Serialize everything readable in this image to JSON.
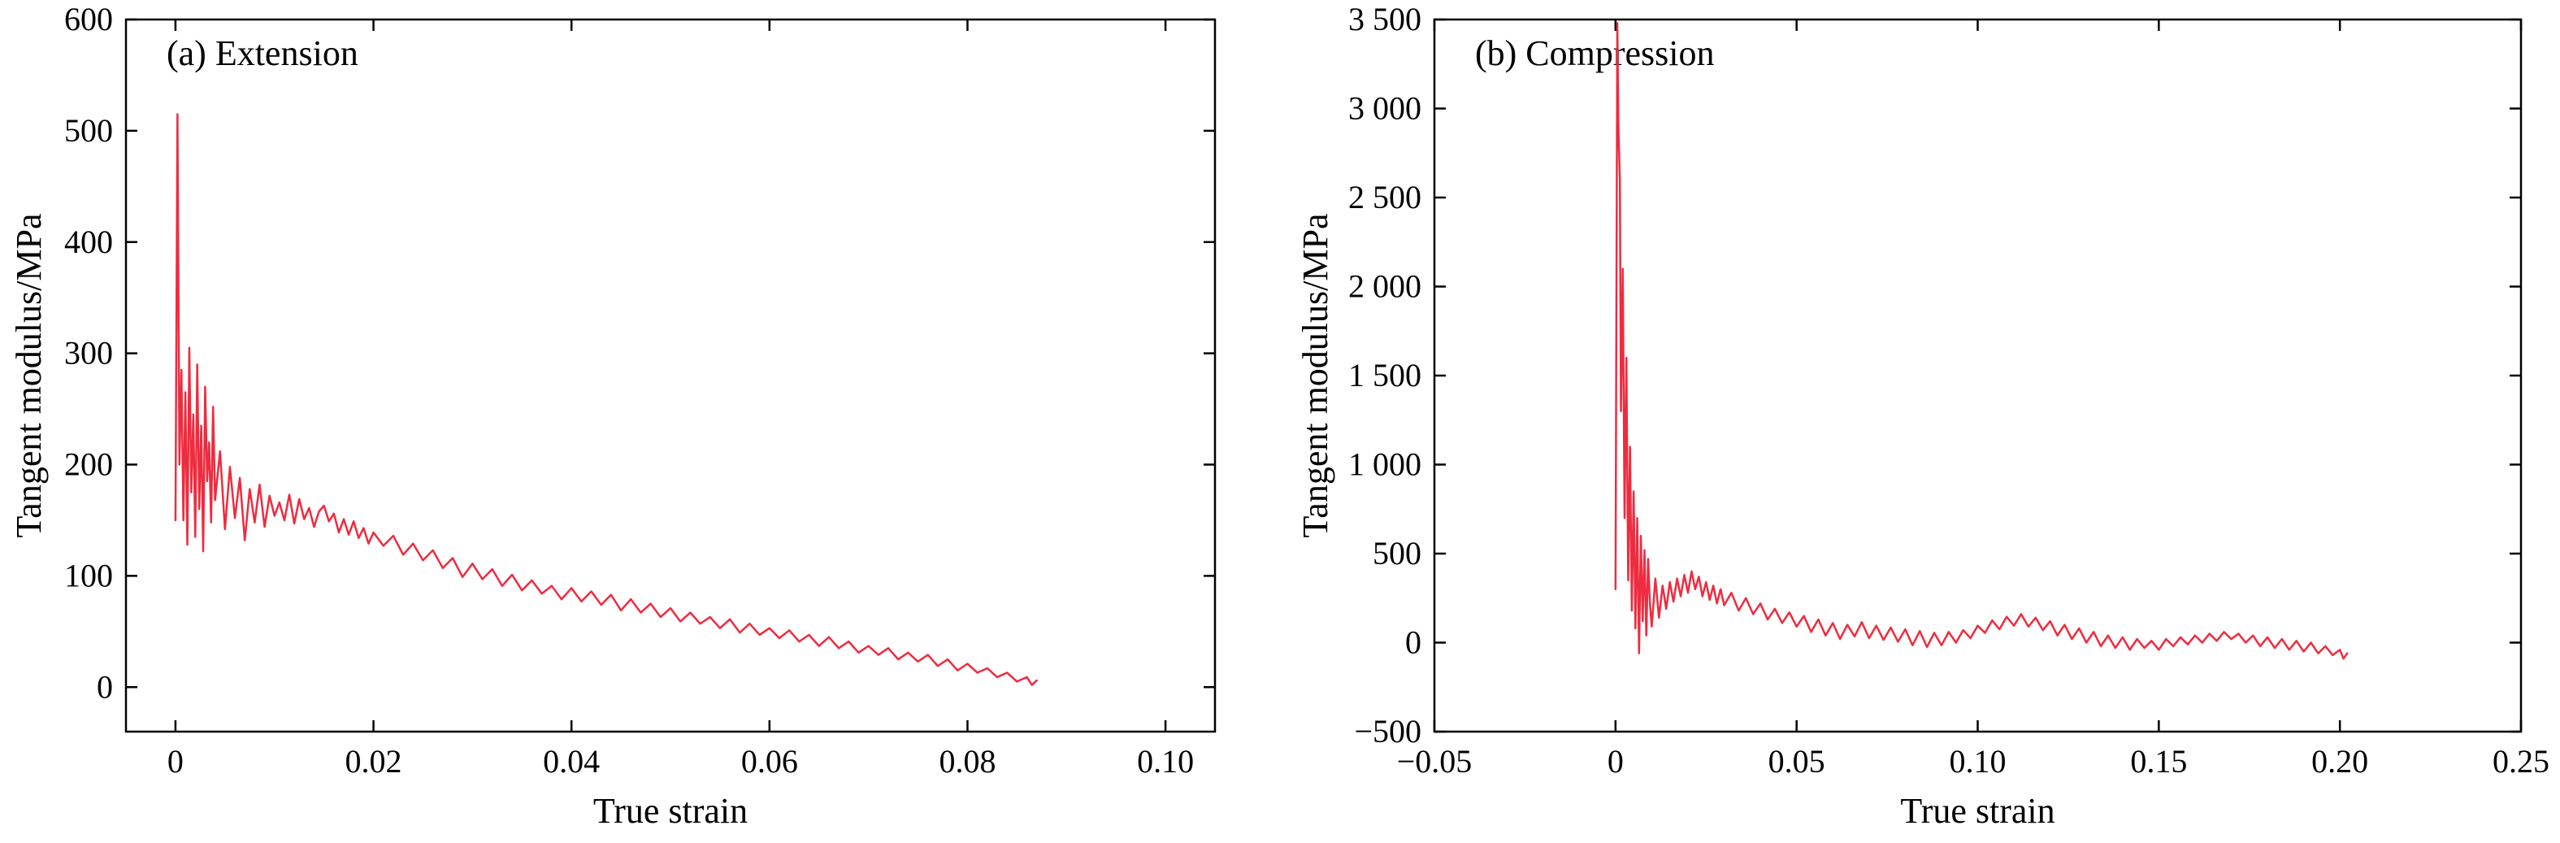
{
  "page": {
    "background": "#ffffff"
  },
  "chart_data": [
    {
      "type": "line",
      "panel_label": "(a) Extension",
      "xlabel": "True strain",
      "ylabel": "Tangent modulus/MPa",
      "xlim": [
        -0.005,
        0.105
      ],
      "ylim": [
        -40,
        600
      ],
      "xticks": [
        0,
        0.02,
        0.04,
        0.06,
        0.08,
        0.1
      ],
      "xtick_labels": [
        "0",
        "0.02",
        "0.04",
        "0.06",
        "0.08",
        "0.10"
      ],
      "yticks": [
        0,
        100,
        200,
        300,
        400,
        500,
        600
      ],
      "ytick_labels": [
        "0",
        "100",
        "200",
        "300",
        "400",
        "500",
        "600"
      ],
      "grid": false,
      "legend": "none",
      "line_color": "#ee2c3f",
      "axis_color": "#000000",
      "series": [
        {
          "name": "tangent-modulus-extension",
          "points": [
            [
              0.0,
              150
            ],
            [
              0.0002,
              515
            ],
            [
              0.0004,
              200
            ],
            [
              0.0006,
              285
            ],
            [
              0.0008,
              150
            ],
            [
              0.001,
              265
            ],
            [
              0.0012,
              128
            ],
            [
              0.0014,
              305
            ],
            [
              0.0016,
              175
            ],
            [
              0.0018,
              245
            ],
            [
              0.002,
              135
            ],
            [
              0.0022,
              290
            ],
            [
              0.0024,
              160
            ],
            [
              0.0026,
              235
            ],
            [
              0.0028,
              122
            ],
            [
              0.003,
              270
            ],
            [
              0.0032,
              185
            ],
            [
              0.0034,
              220
            ],
            [
              0.0036,
              148
            ],
            [
              0.0038,
              252
            ],
            [
              0.004,
              168
            ],
            [
              0.0045,
              212
            ],
            [
              0.005,
              142
            ],
            [
              0.0055,
              198
            ],
            [
              0.006,
              152
            ],
            [
              0.0065,
              188
            ],
            [
              0.007,
              132
            ],
            [
              0.0075,
              178
            ],
            [
              0.008,
              148
            ],
            [
              0.0085,
              182
            ],
            [
              0.009,
              144
            ],
            [
              0.0095,
              172
            ],
            [
              0.01,
              154
            ],
            [
              0.0105,
              166
            ],
            [
              0.011,
              150
            ],
            [
              0.0115,
              173
            ],
            [
              0.012,
              147
            ],
            [
              0.0125,
              169
            ],
            [
              0.013,
              151
            ],
            [
              0.0135,
              161
            ],
            [
              0.014,
              144
            ],
            [
              0.0145,
              158
            ],
            [
              0.015,
              163
            ],
            [
              0.0155,
              149
            ],
            [
              0.016,
              156
            ],
            [
              0.0165,
              139
            ],
            [
              0.017,
              151
            ],
            [
              0.0175,
              137
            ],
            [
              0.018,
              149
            ],
            [
              0.0185,
              134
            ],
            [
              0.019,
              143
            ],
            [
              0.0195,
              129
            ],
            [
              0.02,
              139
            ],
            [
              0.021,
              127
            ],
            [
              0.022,
              136
            ],
            [
              0.023,
              119
            ],
            [
              0.024,
              129
            ],
            [
              0.025,
              114
            ],
            [
              0.026,
              123
            ],
            [
              0.027,
              107
            ],
            [
              0.028,
              116
            ],
            [
              0.029,
              99
            ],
            [
              0.03,
              111
            ],
            [
              0.031,
              97
            ],
            [
              0.032,
              106
            ],
            [
              0.033,
              91
            ],
            [
              0.034,
              101
            ],
            [
              0.035,
              87
            ],
            [
              0.036,
              96
            ],
            [
              0.037,
              84
            ],
            [
              0.038,
              91
            ],
            [
              0.039,
              79
            ],
            [
              0.04,
              89
            ],
            [
              0.041,
              77
            ],
            [
              0.042,
              86
            ],
            [
              0.043,
              74
            ],
            [
              0.044,
              83
            ],
            [
              0.045,
              69
            ],
            [
              0.046,
              79
            ],
            [
              0.047,
              67
            ],
            [
              0.048,
              75
            ],
            [
              0.049,
              63
            ],
            [
              0.05,
              71
            ],
            [
              0.051,
              59
            ],
            [
              0.052,
              67
            ],
            [
              0.053,
              57
            ],
            [
              0.054,
              63
            ],
            [
              0.055,
              53
            ],
            [
              0.056,
              61
            ],
            [
              0.057,
              49
            ],
            [
              0.058,
              57
            ],
            [
              0.059,
              47
            ],
            [
              0.06,
              53
            ],
            [
              0.061,
              44
            ],
            [
              0.062,
              51
            ],
            [
              0.063,
              41
            ],
            [
              0.064,
              47
            ],
            [
              0.065,
              37
            ],
            [
              0.066,
              45
            ],
            [
              0.067,
              35
            ],
            [
              0.068,
              41
            ],
            [
              0.069,
              31
            ],
            [
              0.07,
              37
            ],
            [
              0.071,
              29
            ],
            [
              0.072,
              35
            ],
            [
              0.073,
              25
            ],
            [
              0.074,
              31
            ],
            [
              0.075,
              23
            ],
            [
              0.076,
              29
            ],
            [
              0.077,
              19
            ],
            [
              0.078,
              25
            ],
            [
              0.079,
              15
            ],
            [
              0.08,
              21
            ],
            [
              0.081,
              13
            ],
            [
              0.082,
              17
            ],
            [
              0.083,
              9
            ],
            [
              0.084,
              13
            ],
            [
              0.085,
              5
            ],
            [
              0.086,
              9
            ],
            [
              0.0865,
              2
            ],
            [
              0.087,
              6
            ]
          ]
        }
      ]
    },
    {
      "type": "line",
      "panel_label": "(b) Compression",
      "xlabel": "True strain",
      "ylabel": "Tangent modulus/MPa",
      "xlim": [
        -0.05,
        0.25
      ],
      "ylim": [
        -500,
        3500
      ],
      "xticks": [
        -0.05,
        0,
        0.05,
        0.1,
        0.15,
        0.2,
        0.25
      ],
      "xtick_labels": [
        "−0.05",
        "0",
        "0.05",
        "0.10",
        "0.15",
        "0.20",
        "0.25"
      ],
      "yticks": [
        -500,
        0,
        500,
        1000,
        1500,
        2000,
        2500,
        3000,
        3500
      ],
      "ytick_labels": [
        "−500",
        "0",
        "500",
        "1 000",
        "1 500",
        "2 000",
        "2 500",
        "3 000",
        "3 500"
      ],
      "grid": false,
      "legend": "none",
      "line_color": "#ee2c3f",
      "axis_color": "#000000",
      "series": [
        {
          "name": "tangent-modulus-compression",
          "points": [
            [
              0.0,
              300
            ],
            [
              0.0005,
              3480
            ],
            [
              0.0008,
              2900
            ],
            [
              0.0012,
              2600
            ],
            [
              0.0015,
              1300
            ],
            [
              0.002,
              2100
            ],
            [
              0.0025,
              700
            ],
            [
              0.003,
              1600
            ],
            [
              0.0035,
              350
            ],
            [
              0.004,
              1100
            ],
            [
              0.0045,
              180
            ],
            [
              0.005,
              850
            ],
            [
              0.0055,
              80
            ],
            [
              0.006,
              700
            ],
            [
              0.0065,
              -60
            ],
            [
              0.007,
              600
            ],
            [
              0.0075,
              120
            ],
            [
              0.008,
              520
            ],
            [
              0.0085,
              40
            ],
            [
              0.009,
              470
            ],
            [
              0.0095,
              220
            ],
            [
              0.01,
              90
            ],
            [
              0.011,
              360
            ],
            [
              0.012,
              140
            ],
            [
              0.013,
              320
            ],
            [
              0.014,
              190
            ],
            [
              0.015,
              340
            ],
            [
              0.016,
              230
            ],
            [
              0.017,
              360
            ],
            [
              0.018,
              260
            ],
            [
              0.019,
              380
            ],
            [
              0.02,
              280
            ],
            [
              0.021,
              400
            ],
            [
              0.022,
              300
            ],
            [
              0.023,
              370
            ],
            [
              0.024,
              260
            ],
            [
              0.025,
              340
            ],
            [
              0.026,
              240
            ],
            [
              0.027,
              320
            ],
            [
              0.028,
              220
            ],
            [
              0.029,
              300
            ],
            [
              0.03,
              210
            ],
            [
              0.032,
              280
            ],
            [
              0.034,
              180
            ],
            [
              0.036,
              250
            ],
            [
              0.038,
              160
            ],
            [
              0.04,
              220
            ],
            [
              0.042,
              130
            ],
            [
              0.044,
              190
            ],
            [
              0.046,
              110
            ],
            [
              0.048,
              170
            ],
            [
              0.05,
              90
            ],
            [
              0.052,
              150
            ],
            [
              0.054,
              60
            ],
            [
              0.056,
              130
            ],
            [
              0.058,
              40
            ],
            [
              0.06,
              110
            ],
            [
              0.062,
              20
            ],
            [
              0.064,
              100
            ],
            [
              0.066,
              35
            ],
            [
              0.068,
              115
            ],
            [
              0.07,
              25
            ],
            [
              0.072,
              95
            ],
            [
              0.074,
              15
            ],
            [
              0.076,
              85
            ],
            [
              0.078,
              5
            ],
            [
              0.08,
              75
            ],
            [
              0.082,
              -15
            ],
            [
              0.084,
              65
            ],
            [
              0.086,
              -25
            ],
            [
              0.088,
              55
            ],
            [
              0.09,
              -15
            ],
            [
              0.092,
              60
            ],
            [
              0.094,
              0
            ],
            [
              0.096,
              70
            ],
            [
              0.098,
              25
            ],
            [
              0.1,
              95
            ],
            [
              0.102,
              55
            ],
            [
              0.104,
              125
            ],
            [
              0.106,
              75
            ],
            [
              0.108,
              145
            ],
            [
              0.11,
              95
            ],
            [
              0.112,
              160
            ],
            [
              0.114,
              90
            ],
            [
              0.116,
              140
            ],
            [
              0.118,
              70
            ],
            [
              0.12,
              120
            ],
            [
              0.122,
              40
            ],
            [
              0.124,
              100
            ],
            [
              0.126,
              20
            ],
            [
              0.128,
              80
            ],
            [
              0.13,
              0
            ],
            [
              0.132,
              60
            ],
            [
              0.134,
              -20
            ],
            [
              0.136,
              40
            ],
            [
              0.138,
              -30
            ],
            [
              0.14,
              30
            ],
            [
              0.142,
              -40
            ],
            [
              0.144,
              20
            ],
            [
              0.146,
              -30
            ],
            [
              0.148,
              10
            ],
            [
              0.15,
              -40
            ],
            [
              0.152,
              20
            ],
            [
              0.154,
              -20
            ],
            [
              0.156,
              30
            ],
            [
              0.158,
              -10
            ],
            [
              0.16,
              40
            ],
            [
              0.162,
              0
            ],
            [
              0.164,
              50
            ],
            [
              0.166,
              10
            ],
            [
              0.168,
              60
            ],
            [
              0.17,
              20
            ],
            [
              0.172,
              50
            ],
            [
              0.174,
              0
            ],
            [
              0.176,
              40
            ],
            [
              0.178,
              -20
            ],
            [
              0.18,
              30
            ],
            [
              0.182,
              -30
            ],
            [
              0.184,
              20
            ],
            [
              0.186,
              -40
            ],
            [
              0.188,
              10
            ],
            [
              0.19,
              -50
            ],
            [
              0.192,
              0
            ],
            [
              0.194,
              -60
            ],
            [
              0.196,
              -20
            ],
            [
              0.198,
              -70
            ],
            [
              0.2,
              -40
            ],
            [
              0.201,
              -90
            ],
            [
              0.202,
              -60
            ]
          ]
        }
      ]
    }
  ]
}
